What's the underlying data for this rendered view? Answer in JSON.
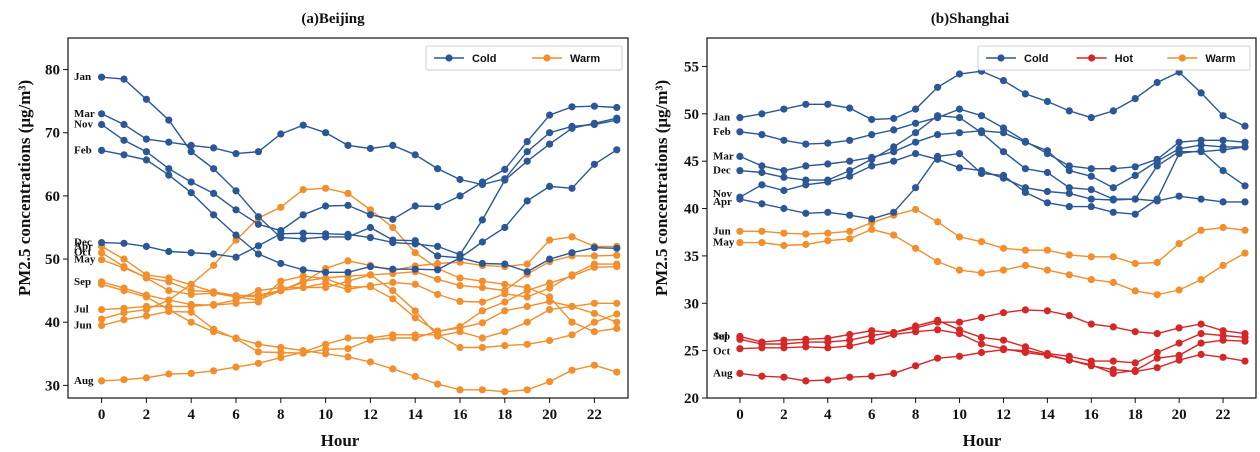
{
  "chart_data": [
    {
      "type": "line",
      "title": "(a)Beijing",
      "xlabel": "Hour",
      "ylabel": "PM2.5 concentrations (μg/m³)",
      "xlim": [
        -1.5,
        23.5
      ],
      "ylim": [
        28,
        85
      ],
      "xticks": [
        0,
        2,
        4,
        6,
        8,
        10,
        12,
        14,
        16,
        18,
        20,
        22
      ],
      "yticks": [
        30,
        40,
        50,
        60,
        70,
        80
      ],
      "legend": {
        "position": "top-right",
        "entries": [
          {
            "name": "Cold",
            "color": "#2b5796"
          },
          {
            "name": "Warm",
            "color": "#f28e2b"
          }
        ]
      },
      "x": [
        0,
        1,
        2,
        3,
        4,
        5,
        6,
        7,
        8,
        9,
        10,
        11,
        12,
        13,
        14,
        15,
        16,
        17,
        18,
        19,
        20,
        21,
        22,
        23
      ],
      "series": [
        {
          "name": "Jan",
          "group": "Cold",
          "values": [
            78.8,
            78.5,
            75.3,
            72.0,
            67.0,
            64.3,
            60.8,
            56.7,
            53.4,
            53.2,
            53.5,
            53.5,
            55.0,
            53.0,
            52.9,
            50.5,
            50.2,
            49.3,
            49.2,
            48.0,
            50.0,
            51.0,
            51.8,
            51.7
          ]
        },
        {
          "name": "Mar",
          "group": "Cold",
          "values": [
            73.0,
            71.3,
            69.0,
            68.5,
            68.0,
            67.6,
            66.7,
            67.0,
            69.8,
            71.2,
            70.0,
            68.0,
            67.5,
            68.0,
            66.5,
            64.3,
            62.6,
            61.8,
            62.7,
            67.0,
            70.0,
            71.0,
            71.3,
            72.0
          ]
        },
        {
          "name": "Nov",
          "group": "Cold",
          "values": [
            71.3,
            68.8,
            67.0,
            64.3,
            62.2,
            60.4,
            57.8,
            55.5,
            54.5,
            57.0,
            58.4,
            58.5,
            57.0,
            56.3,
            58.4,
            58.3,
            60.0,
            62.2,
            64.2,
            68.6,
            72.8,
            74.1,
            74.2,
            74.0
          ]
        },
        {
          "name": "Feb",
          "group": "Cold",
          "values": [
            67.2,
            66.5,
            65.7,
            63.3,
            60.5,
            57.0,
            53.8,
            50.8,
            49.3,
            48.3,
            47.9,
            47.9,
            48.8,
            48.4,
            48.4,
            48.3,
            50.2,
            52.7,
            55.0,
            59.2,
            61.5,
            61.2,
            65.0,
            67.3
          ]
        },
        {
          "name": "Dec",
          "group": "Cold",
          "values": [
            52.6,
            52.5,
            52.0,
            51.2,
            51.0,
            50.8,
            50.3,
            52.1,
            54.0,
            54.1,
            54.0,
            53.9,
            53.4,
            52.6,
            52.4,
            52.0,
            50.7,
            56.2,
            62.5,
            65.5,
            68.2,
            70.7,
            71.5,
            72.3
          ]
        },
        {
          "name": "Apr",
          "group": "Warm",
          "values": [
            52.0,
            50.0,
            47.5,
            47.0,
            45.9,
            44.8,
            44.2,
            44.0,
            45.0,
            46.3,
            48.5,
            49.7,
            49.0,
            48.2,
            48.9,
            49.3,
            49.5,
            49.0,
            48.8,
            49.2,
            53.0,
            53.5,
            52.0,
            52.0
          ]
        },
        {
          "name": "Oct",
          "group": "Warm",
          "values": [
            51.0,
            48.8,
            47.0,
            45.0,
            44.4,
            44.6,
            44.0,
            43.5,
            45.0,
            46.5,
            47.0,
            47.3,
            47.5,
            47.7,
            48.0,
            46.8,
            45.8,
            45.5,
            45.0,
            47.6,
            49.6,
            50.5,
            50.5,
            50.6
          ]
        },
        {
          "name": "May",
          "group": "Warm",
          "values": [
            49.9,
            48.6,
            47.1,
            46.4,
            45.0,
            44.8,
            44.2,
            44.3,
            45.0,
            45.5,
            46.2,
            45.2,
            45.8,
            46.3,
            46.0,
            44.4,
            43.3,
            43.2,
            44.5,
            44.0,
            45.4,
            47.5,
            49.2,
            49.2
          ]
        },
        {
          "name": "Sep",
          "group": "Warm",
          "values": [
            46.4,
            45.4,
            44.3,
            43.5,
            42.8,
            42.7,
            43.0,
            43.2,
            46.5,
            47.3,
            46.9,
            45.6,
            45.6,
            43.7,
            40.7,
            38.5,
            39.3,
            41.8,
            43.2,
            45.0,
            46.2,
            47.3,
            48.7,
            48.8
          ]
        },
        {
          "name": "Jul",
          "group": "Warm",
          "values": [
            42.0,
            42.2,
            42.5,
            42.5,
            42.5,
            42.8,
            43.5,
            45.0,
            45.5,
            45.5,
            45.5,
            46.5,
            47.5,
            45.0,
            41.8,
            37.8,
            38.5,
            37.5,
            38.5,
            40.0,
            42.0,
            42.5,
            43.0,
            43.0
          ]
        },
        {
          "name": "Jun",
          "group": "Warm",
          "values": [
            39.5,
            40.4,
            41.0,
            41.7,
            41.6,
            38.9,
            37.4,
            35.3,
            35.2,
            35.1,
            35.7,
            35.8,
            37.2,
            37.5,
            37.5,
            38.6,
            39.1,
            39.9,
            41.8,
            42.5,
            43.3,
            42.5,
            41.4,
            40.0
          ]
        },
        {
          "name": "Aug",
          "group": "Warm",
          "values": [
            30.7,
            30.9,
            31.2,
            31.8,
            31.9,
            32.3,
            32.9,
            33.5,
            34.4,
            35.3,
            36.5,
            37.5,
            37.5,
            38.0,
            38.0,
            38.0,
            36.0,
            36.0,
            36.3,
            36.5,
            37.1,
            38.0,
            40.0,
            41.3
          ]
        },
        {
          "name": "",
          "group": "Warm",
          "values": [
            40.5,
            41.5,
            42.0,
            43.5,
            46.0,
            49.0,
            53.0,
            56.5,
            58.2,
            61.0,
            61.2,
            60.4,
            57.8,
            55.0,
            51.0,
            48.5,
            47.0,
            46.5,
            46.0,
            45.5,
            44.0,
            40.0,
            38.5,
            39.0
          ]
        },
        {
          "name": "",
          "group": "Warm",
          "values": [
            46.0,
            45.0,
            44.0,
            42.0,
            40.0,
            38.5,
            37.5,
            36.5,
            36.0,
            35.5,
            35.0,
            34.5,
            33.7,
            32.6,
            31.4,
            30.2,
            29.3,
            29.3,
            29.0,
            29.3,
            30.6,
            32.4,
            33.2,
            32.1
          ]
        }
      ]
    },
    {
      "type": "line",
      "title": "(b)Shanghai",
      "xlabel": "Hour",
      "ylabel": "PM2.5 concentrations (μg/m³)",
      "xlim": [
        -1.5,
        23.5
      ],
      "ylim": [
        20,
        58
      ],
      "xticks": [
        0,
        2,
        4,
        6,
        8,
        10,
        12,
        14,
        16,
        18,
        20,
        22
      ],
      "yticks": [
        20,
        25,
        30,
        35,
        40,
        45,
        50,
        55
      ],
      "legend": {
        "position": "top-right",
        "entries": [
          {
            "name": "Cold",
            "color": "#2b5796"
          },
          {
            "name": "Hot",
            "color": "#d62728"
          },
          {
            "name": "Warm",
            "color": "#f28e2b"
          }
        ]
      },
      "x": [
        0,
        1,
        2,
        3,
        4,
        5,
        6,
        7,
        8,
        9,
        10,
        11,
        12,
        13,
        14,
        15,
        16,
        17,
        18,
        19,
        20,
        21,
        22,
        23
      ],
      "series": [
        {
          "name": "Jan",
          "group": "Cold",
          "values": [
            49.6,
            50.0,
            50.5,
            51.0,
            51.0,
            50.6,
            49.4,
            49.5,
            50.5,
            52.8,
            54.2,
            54.5,
            53.5,
            52.1,
            51.3,
            50.3,
            49.6,
            50.3,
            51.6,
            53.3,
            54.4,
            52.2,
            49.8,
            48.7
          ]
        },
        {
          "name": "Feb",
          "group": "Cold",
          "values": [
            48.1,
            47.8,
            47.2,
            46.8,
            46.9,
            47.2,
            47.8,
            48.3,
            49.0,
            49.6,
            50.5,
            49.8,
            48.5,
            47.1,
            45.8,
            44.5,
            44.2,
            44.2,
            44.4,
            45.2,
            47.0,
            47.2,
            47.2,
            47.0
          ]
        },
        {
          "name": "Mar",
          "group": "Cold",
          "values": [
            45.5,
            44.5,
            44.0,
            44.5,
            44.7,
            45.0,
            45.4,
            46.0,
            47.0,
            47.8,
            48.0,
            48.2,
            48.0,
            47.0,
            46.1,
            44.0,
            43.4,
            42.2,
            43.5,
            45.0,
            46.3,
            46.7,
            46.5,
            46.5
          ]
        },
        {
          "name": "Dec",
          "group": "Cold",
          "values": [
            44.0,
            43.8,
            43.3,
            43.0,
            43.0,
            44.0,
            45.2,
            46.5,
            48.0,
            49.8,
            49.6,
            48.0,
            46.0,
            44.2,
            43.8,
            42.2,
            42.0,
            41.0,
            41.0,
            44.5,
            46.0,
            46.0,
            46.2,
            46.5
          ]
        },
        {
          "name": "Nov",
          "group": "Cold",
          "values": [
            41.2,
            42.5,
            41.9,
            42.5,
            42.8,
            43.4,
            44.5,
            45.0,
            45.8,
            45.2,
            44.3,
            44.0,
            43.2,
            42.2,
            41.8,
            41.6,
            41.0,
            40.9,
            41.0,
            40.8,
            41.3,
            41.0,
            40.7,
            40.7
          ]
        },
        {
          "name": "Apr",
          "group": "Cold",
          "values": [
            41.0,
            40.5,
            40.0,
            39.5,
            39.6,
            39.3,
            38.9,
            39.6,
            42.2,
            45.5,
            45.8,
            43.7,
            43.5,
            41.7,
            40.6,
            40.2,
            40.2,
            39.6,
            39.4,
            41.0,
            45.8,
            46.1,
            44.0,
            42.4
          ]
        },
        {
          "name": "Jun",
          "group": "Warm",
          "values": [
            37.6,
            37.6,
            37.4,
            37.3,
            37.4,
            37.6,
            38.5,
            39.3,
            39.9,
            38.6,
            37.0,
            36.5,
            35.8,
            35.6,
            35.6,
            35.1,
            34.9,
            34.9,
            34.2,
            34.3,
            36.3,
            37.7,
            38.0,
            37.7
          ]
        },
        {
          "name": "May",
          "group": "Warm",
          "values": [
            36.4,
            36.4,
            36.1,
            36.2,
            36.6,
            36.8,
            37.8,
            37.2,
            35.8,
            34.4,
            33.5,
            33.2,
            33.5,
            34.0,
            33.5,
            33.0,
            32.5,
            32.2,
            31.3,
            30.9,
            31.4,
            32.5,
            34.0,
            35.3
          ]
        },
        {
          "name": "Sep",
          "group": "Hot",
          "values": [
            26.5,
            25.9,
            26.1,
            26.2,
            26.3,
            26.7,
            27.1,
            26.9,
            27.4,
            28.0,
            28.0,
            28.5,
            29.0,
            29.3,
            29.2,
            28.7,
            27.8,
            27.5,
            27.0,
            26.8,
            27.4,
            27.8,
            27.1,
            26.8
          ]
        },
        {
          "name": "Jul",
          "group": "Hot",
          "values": [
            26.2,
            25.7,
            25.7,
            25.9,
            25.9,
            26.1,
            26.6,
            26.9,
            27.6,
            28.2,
            27.2,
            26.4,
            26.1,
            25.4,
            24.7,
            24.4,
            23.9,
            23.9,
            23.7,
            24.8,
            25.8,
            26.8,
            26.6,
            26.4
          ]
        },
        {
          "name": "Oct",
          "group": "Hot",
          "values": [
            25.2,
            25.3,
            25.3,
            25.4,
            25.3,
            25.5,
            26.0,
            26.7,
            27.0,
            27.2,
            26.8,
            25.7,
            25.2,
            24.8,
            24.5,
            24.0,
            23.5,
            22.6,
            22.9,
            24.2,
            24.5,
            25.8,
            26.1,
            26.0
          ]
        },
        {
          "name": "Aug",
          "group": "Hot",
          "values": [
            22.6,
            22.3,
            22.2,
            21.8,
            21.9,
            22.2,
            22.3,
            22.6,
            23.4,
            24.2,
            24.4,
            24.8,
            25.1,
            25.0,
            24.6,
            24.0,
            23.4,
            23.0,
            22.8,
            23.2,
            24.0,
            24.6,
            24.3,
            23.9
          ]
        }
      ]
    }
  ]
}
